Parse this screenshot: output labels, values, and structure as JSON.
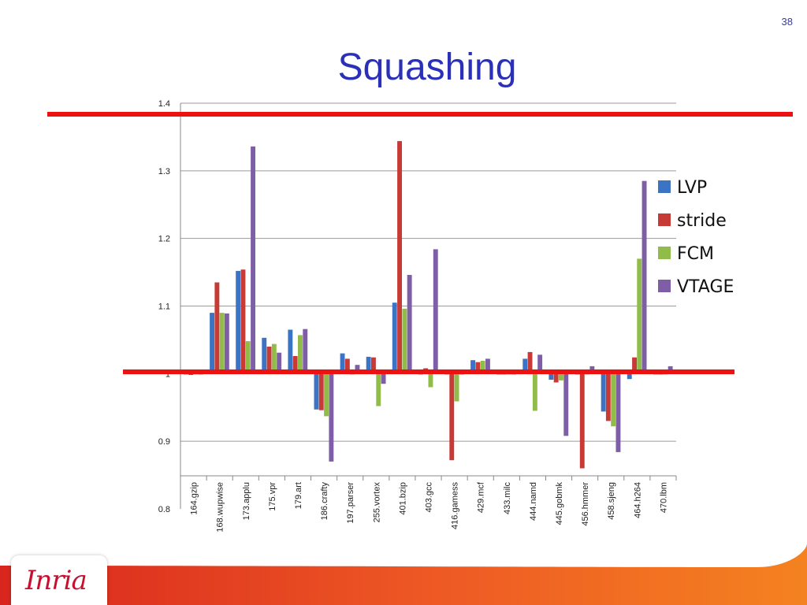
{
  "slide": {
    "number": "38",
    "title": "Squashing",
    "logo": "Inria"
  },
  "chart_data": {
    "type": "bar",
    "title": "",
    "xlabel": "",
    "ylabel": "",
    "ylim": [
      0.8,
      1.4
    ],
    "yticks": [
      "0.8",
      "0.9",
      "1",
      "1.1",
      "1.2",
      "1.3",
      "1.4"
    ],
    "grid": true,
    "legend": "right",
    "categories": [
      "164.gzip",
      "168.wupwise",
      "173.applu",
      "175.vpr",
      "179.art",
      "186.crafty",
      "197.parser",
      "255.vortex",
      "401.bzip",
      "403.gcc",
      "416.gamess",
      "429.mcf",
      "433.milc",
      "444.namd",
      "445.gobmk",
      "456.hmmer",
      "458.sjeng",
      "464.h264",
      "470.lbm"
    ],
    "series": [
      {
        "name": "LVP",
        "color": "#3b74c4",
        "values": [
          1.0,
          1.09,
          1.152,
          1.053,
          1.065,
          0.947,
          1.03,
          1.025,
          1.105,
          1.0,
          1.0,
          1.02,
          1.0,
          1.022,
          0.991,
          1.0,
          0.944,
          0.992,
          1.0
        ]
      },
      {
        "name": "stride",
        "color": "#c83a36",
        "values": [
          0.998,
          1.135,
          1.154,
          1.04,
          1.026,
          0.946,
          1.022,
          1.024,
          1.344,
          1.008,
          0.872,
          1.017,
          1.0,
          1.032,
          0.987,
          0.86,
          0.93,
          1.024,
          1.0
        ]
      },
      {
        "name": "FCM",
        "color": "#92bc4a",
        "values": [
          1.0,
          1.09,
          1.048,
          1.044,
          1.057,
          0.937,
          1.0,
          0.952,
          1.096,
          0.98,
          0.959,
          1.019,
          1.0,
          0.945,
          0.99,
          1.0,
          0.922,
          1.17,
          1.0
        ]
      },
      {
        "name": "VTAGE",
        "color": "#7f5ea8",
        "values": [
          1.0,
          1.089,
          1.336,
          1.031,
          1.066,
          0.87,
          1.013,
          0.985,
          1.146,
          1.184,
          1.0,
          1.022,
          1.0,
          1.028,
          0.908,
          1.011,
          0.884,
          1.285,
          1.011
        ]
      }
    ]
  }
}
